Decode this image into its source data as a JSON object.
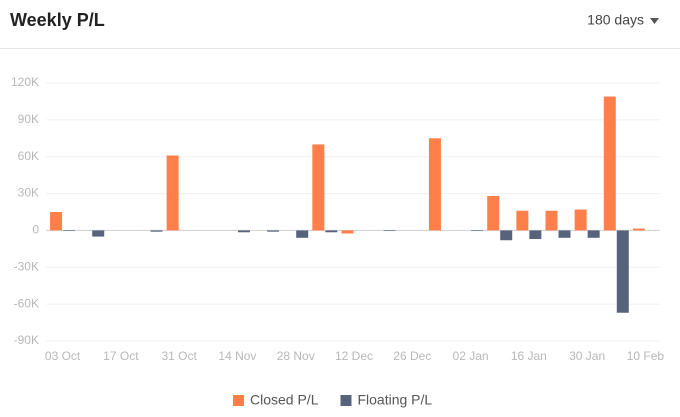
{
  "header": {
    "title": "Weekly P/L",
    "range": "180 days"
  },
  "chart_data": {
    "type": "bar",
    "categories": [
      "03 Oct",
      null,
      "17 Oct",
      null,
      "31 Oct",
      null,
      "14 Nov",
      null,
      "28 Nov",
      null,
      "12 Dec",
      null,
      "26 Dec",
      null,
      "02 Jan",
      null,
      "16 Jan",
      null,
      "30 Jan",
      null,
      "10 Feb"
    ],
    "series": [
      {
        "name": "Closed P/L",
        "color": "#ff7f4a",
        "values": [
          15000,
          0,
          0,
          0,
          61000,
          0,
          0,
          0,
          0,
          70000,
          -2500,
          0,
          0,
          75000,
          0,
          28000,
          16000,
          16000,
          17000,
          109000,
          1500
        ]
      },
      {
        "name": "Floating P/L",
        "color": "#56637a",
        "values": [
          -500,
          -5000,
          0,
          -1000,
          0,
          0,
          -1500,
          -1000,
          -6000,
          -1500,
          0,
          -500,
          0,
          0,
          -500,
          -8000,
          -7000,
          -6000,
          -6000,
          -67000,
          0
        ]
      }
    ],
    "ylim": [
      -90000,
      120000
    ],
    "yticks": [
      {
        "value": -90000,
        "label": "-90K"
      },
      {
        "value": -60000,
        "label": "-60K"
      },
      {
        "value": -30000,
        "label": "-30K"
      },
      {
        "value": 0,
        "label": "0"
      },
      {
        "value": 30000,
        "label": "30K"
      },
      {
        "value": 60000,
        "label": "60K"
      },
      {
        "value": 90000,
        "label": "90K"
      },
      {
        "value": 120000,
        "label": "120K"
      }
    ],
    "grid": true,
    "legend": "bottom"
  }
}
